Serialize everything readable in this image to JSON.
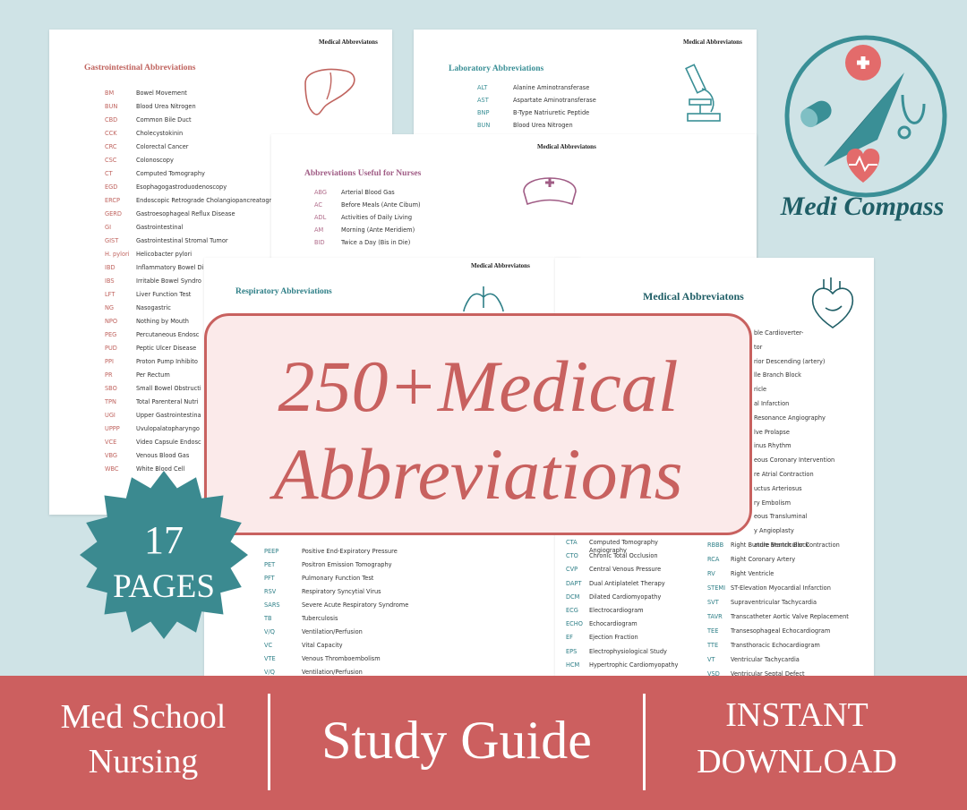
{
  "pages": {
    "gi": {
      "header": "Medical Abbreviatons",
      "title": "Gastrointestinal Abbreviations",
      "rows": [
        [
          "BM",
          "Bowel Movement"
        ],
        [
          "BUN",
          "Blood Urea Nitrogen"
        ],
        [
          "CBD",
          "Common Bile Duct"
        ],
        [
          "CCK",
          "Cholecystokinin"
        ],
        [
          "CRC",
          "Colorectal Cancer"
        ],
        [
          "CSC",
          "Colonoscopy"
        ],
        [
          "CT",
          "Computed Tomography"
        ],
        [
          "EGD",
          "Esophagogastroduodenoscopy"
        ],
        [
          "ERCP",
          "Endoscopic Retrograde Cholangiopancreatogr"
        ],
        [
          "GERD",
          "Gastroesophageal Reflux Disease"
        ],
        [
          "GI",
          "Gastrointestinal"
        ],
        [
          "GIST",
          "Gastrointestinal Stromal Tumor"
        ],
        [
          "H. pylori",
          "Helicobacter pylori"
        ],
        [
          "IBD",
          "Inflammatory Bowel Di"
        ],
        [
          "IBS",
          "Irritable Bowel Syndro"
        ],
        [
          "LFT",
          "Liver Function Test"
        ],
        [
          "NG",
          "Nasogastric"
        ],
        [
          "NPO",
          "Nothing by Mouth"
        ],
        [
          "PEG",
          "Percutaneous Endosc"
        ],
        [
          "PUD",
          "Peptic Ulcer Disease"
        ],
        [
          "PPI",
          "Proton Pump Inhibito"
        ],
        [
          "PR",
          "Per Rectum"
        ],
        [
          "SBO",
          "Small Bowel Obstructi"
        ],
        [
          "TPN",
          "Total Parenteral Nutri"
        ],
        [
          "UGI",
          "Upper Gastrointestina"
        ],
        [
          "UPPP",
          "Uvulopalatopharyngo"
        ],
        [
          "VCE",
          "Video Capsule Endosc"
        ],
        [
          "VBG",
          "Venous Blood Gas"
        ],
        [
          "WBC",
          "White Blood Cell"
        ]
      ]
    },
    "lab": {
      "header": "Medical Abbreviatons",
      "title": "Laboratory Abbreviations",
      "rows": [
        [
          "ALT",
          "Alanine Aminotransferase"
        ],
        [
          "AST",
          "Aspartate Aminotransferase"
        ],
        [
          "BNP",
          "B-Type Natriuretic Peptide"
        ],
        [
          "BUN",
          "Blood Urea Nitrogen"
        ]
      ]
    },
    "nurses": {
      "header": "Medical Abbreviatons",
      "title": "Abbreviations Useful for Nurses",
      "rows": [
        [
          "ABG",
          "Arterial Blood Gas"
        ],
        [
          "AC",
          "Before Meals (Ante Cibum)"
        ],
        [
          "ADL",
          "Activities of Daily Living"
        ],
        [
          "AM",
          "Morning (Ante Meridiem)"
        ],
        [
          "BID",
          "Twice a Day (Bis in Die)"
        ]
      ]
    },
    "respiratory": {
      "header": "Medical Abbreviatons",
      "title": "Respiratory Abbreviations",
      "rows": [
        [
          "PEEP",
          "Positive End-Expiratory Pressure"
        ],
        [
          "PET",
          "Positron Emission Tomography"
        ],
        [
          "PFT",
          "Pulmonary Function Test"
        ],
        [
          "RSV",
          "Respiratory Syncytial Virus"
        ],
        [
          "SARS",
          "Severe Acute Respiratory Syndrome"
        ],
        [
          "TB",
          "Tuberculosis"
        ],
        [
          "V/Q",
          "Ventilation/Perfusion"
        ],
        [
          "VC",
          "Vital Capacity"
        ],
        [
          "VTE",
          "Venous Thromboembolism"
        ],
        [
          "V/Q",
          "Ventilation/Perfusion"
        ]
      ]
    },
    "cardio": {
      "title": "Medical Abbreviatons",
      "left_rows": [
        [
          "CTA",
          "Computed Tomography Angiography"
        ],
        [
          "CTO",
          "Chronic Total Occlusion"
        ],
        [
          "CVP",
          "Central Venous Pressure"
        ],
        [
          "DAPT",
          "Dual Antiplatelet Therapy"
        ],
        [
          "DCM",
          "Dilated Cardiomyopathy"
        ],
        [
          "ECG",
          "Electrocardiogram"
        ],
        [
          "ECHO",
          "Echocardiogram"
        ],
        [
          "EF",
          "Ejection Fraction"
        ],
        [
          "EPS",
          "Electrophysiological Study"
        ],
        [
          "HCM",
          "Hypertrophic Cardiomyopathy"
        ]
      ],
      "right_fragments": [
        "ble Cardioverter-",
        "tor",
        "rior Descending (artery)",
        "lle Branch Block",
        "ricle",
        "al Infarction",
        "Resonance Angiography",
        "lve Prolapse",
        "inus Rhythm",
        "eous Coronary Intervention",
        "re Atrial Contraction",
        "uctus Arteriosus",
        "ry Embolism",
        "eous Transluminal",
        "y Angioplasty",
        "ature Ventricular Contraction"
      ],
      "right_rows": [
        [
          "RBBB",
          "Right Bundle Branch Block"
        ],
        [
          "RCA",
          "Right Coronary Artery"
        ],
        [
          "RV",
          "Right Ventricle"
        ],
        [
          "STEMI",
          "ST-Elevation Myocardial Infarction"
        ],
        [
          "SVT",
          "Supraventricular Tachycardia"
        ],
        [
          "TAVR",
          "Transcatheter Aortic Valve Replacement"
        ],
        [
          "TEE",
          "Transesophageal Echocardiogram"
        ],
        [
          "TTE",
          "Transthoracic Echocardiogram"
        ],
        [
          "VT",
          "Ventricular Tachycardia"
        ],
        [
          "VSD",
          "Ventricular Septal Defect"
        ]
      ]
    }
  },
  "banner": {
    "line1": "250+Medical",
    "line2": "Abbreviations"
  },
  "badge": {
    "number": "17",
    "label": "PAGES"
  },
  "logo": {
    "text": "Medi Compass"
  },
  "footer": {
    "left": [
      "Med School",
      "Nursing"
    ],
    "center": "Study Guide",
    "right": [
      "INSTANT",
      "DOWNLOAD"
    ]
  }
}
